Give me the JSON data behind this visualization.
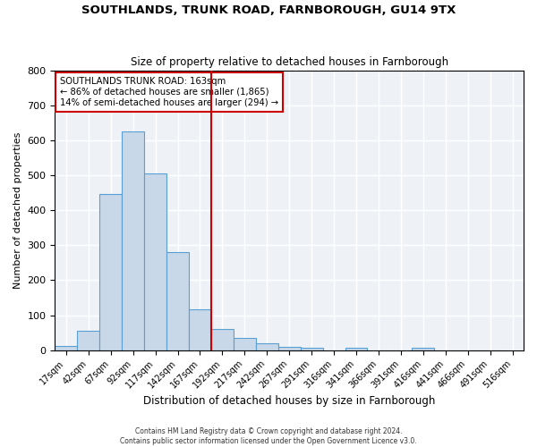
{
  "title": "SOUTHLANDS, TRUNK ROAD, FARNBOROUGH, GU14 9TX",
  "subtitle": "Size of property relative to detached houses in Farnborough",
  "xlabel": "Distribution of detached houses by size in Farnborough",
  "ylabel": "Number of detached properties",
  "bar_values": [
    13,
    55,
    447,
    625,
    505,
    280,
    116,
    62,
    36,
    20,
    10,
    8,
    0,
    8,
    0,
    0,
    8,
    0,
    0,
    0
  ],
  "bar_labels": [
    "17sqm",
    "42sqm",
    "67sqm",
    "92sqm",
    "117sqm",
    "142sqm",
    "167sqm",
    "192sqm",
    "217sqm",
    "242sqm",
    "267sqm",
    "291sqm",
    "316sqm",
    "341sqm",
    "366sqm",
    "391sqm",
    "416sqm",
    "441sqm",
    "466sqm",
    "491sqm"
  ],
  "x_extra_label": "516sqm",
  "bar_color": "#c8d8e8",
  "bar_edge_color": "#5a9fd4",
  "annotation_text_line1": "SOUTHLANDS TRUNK ROAD: 163sqm",
  "annotation_text_line2": "← 86% of detached houses are smaller (1,865)",
  "annotation_text_line3": "14% of semi-detached houses are larger (294) →",
  "annotation_box_color": "#ffffff",
  "annotation_box_edge": "#cc0000",
  "vline_x": 6.5,
  "vline_color": "#cc0000",
  "ylim": [
    0,
    800
  ],
  "yticks": [
    0,
    100,
    200,
    300,
    400,
    500,
    600,
    700,
    800
  ],
  "footer_line1": "Contains HM Land Registry data © Crown copyright and database right 2024.",
  "footer_line2": "Contains public sector information licensed under the Open Government Licence v3.0.",
  "background_color": "#eef2f7",
  "grid_color": "#ffffff"
}
